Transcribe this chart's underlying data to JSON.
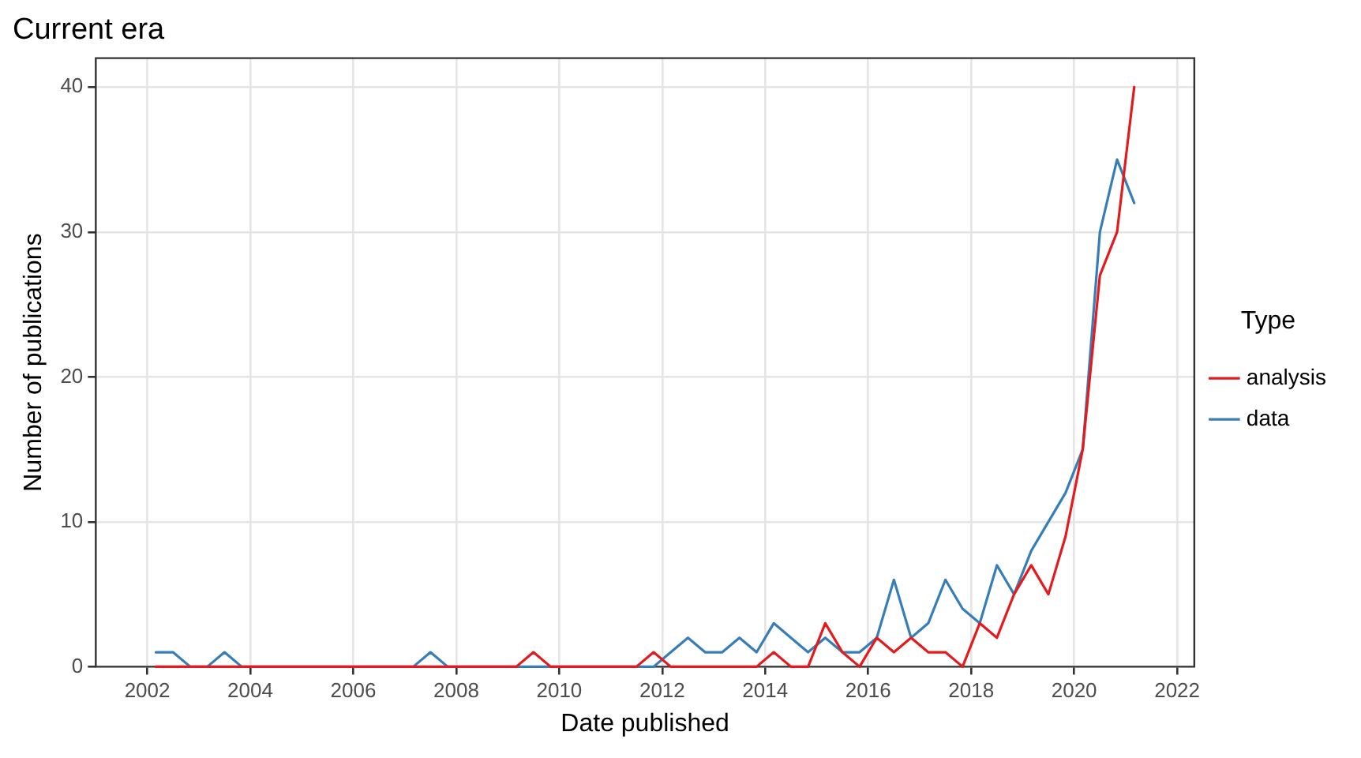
{
  "chart_data": {
    "type": "line",
    "title": "Current era",
    "xlabel": "Date published",
    "ylabel": "Number of publications",
    "legend_title": "Type",
    "x": [
      "2002-03",
      "2002-07",
      "2002-11",
      "2003-03",
      "2003-07",
      "2003-11",
      "2004-03",
      "2004-07",
      "2004-11",
      "2005-03",
      "2005-07",
      "2005-11",
      "2006-03",
      "2006-07",
      "2006-11",
      "2007-03",
      "2007-07",
      "2007-11",
      "2008-03",
      "2008-07",
      "2008-11",
      "2009-03",
      "2009-07",
      "2009-11",
      "2010-03",
      "2010-07",
      "2010-11",
      "2011-03",
      "2011-07",
      "2011-11",
      "2012-03",
      "2012-07",
      "2012-11",
      "2013-03",
      "2013-07",
      "2013-11",
      "2014-03",
      "2014-07",
      "2014-11",
      "2015-03",
      "2015-07",
      "2015-11",
      "2016-03",
      "2016-07",
      "2016-11",
      "2017-03",
      "2017-07",
      "2017-11",
      "2018-03",
      "2018-07",
      "2018-11",
      "2019-03",
      "2019-07",
      "2019-11",
      "2020-03",
      "2020-07",
      "2020-11",
      "2021-03"
    ],
    "series": [
      {
        "name": "analysis",
        "color": "#e41a1c",
        "values": [
          0,
          0,
          0,
          0,
          0,
          0,
          0,
          0,
          0,
          0,
          0,
          0,
          0,
          0,
          0,
          0,
          0,
          0,
          0,
          0,
          0,
          0,
          1,
          0,
          0,
          0,
          0,
          0,
          0,
          1,
          0,
          0,
          0,
          0,
          0,
          0,
          1,
          0,
          0,
          3,
          1,
          0,
          2,
          1,
          2,
          1,
          1,
          0,
          3,
          2,
          5,
          7,
          5,
          9,
          15,
          27,
          30,
          40
        ]
      },
      {
        "name": "data",
        "color": "#377eb8",
        "values": [
          1,
          1,
          0,
          0,
          1,
          0,
          0,
          0,
          0,
          0,
          0,
          0,
          0,
          0,
          0,
          0,
          1,
          0,
          0,
          0,
          0,
          0,
          0,
          0,
          0,
          0,
          0,
          0,
          0,
          0,
          1,
          2,
          1,
          1,
          2,
          1,
          3,
          2,
          1,
          2,
          1,
          1,
          2,
          6,
          2,
          3,
          6,
          4,
          3,
          7,
          5,
          8,
          10,
          12,
          15,
          30,
          35,
          32
        ]
      }
    ],
    "xlim": [
      "2001-01",
      "2022-05"
    ],
    "xticks": [
      "2002",
      "2004",
      "2006",
      "2008",
      "2010",
      "2012",
      "2014",
      "2016",
      "2018",
      "2020",
      "2022"
    ],
    "ylim": [
      0,
      42
    ],
    "yticks": [
      0,
      10,
      20,
      30,
      40
    ],
    "grid": true,
    "legend": "right",
    "marker": "none",
    "line_style": "solid"
  }
}
